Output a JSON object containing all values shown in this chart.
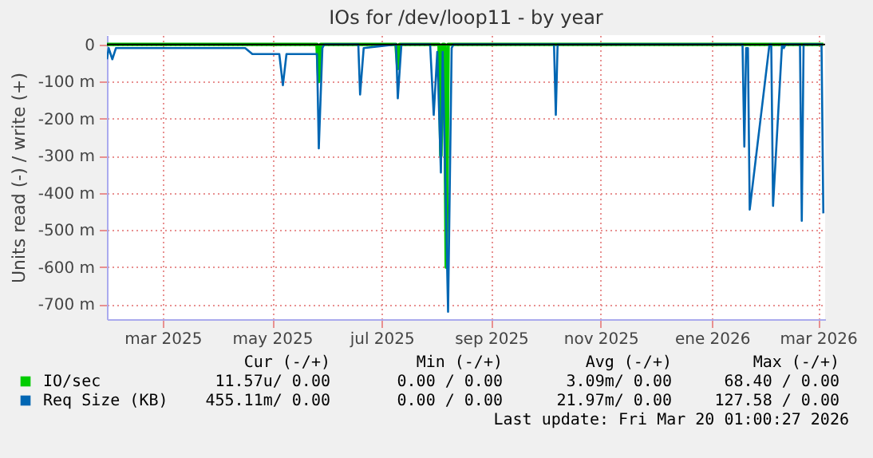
{
  "chart_data": {
    "type": "line",
    "title": "IOs for /dev/loop11 - by year",
    "ylabel": "Units read (-) / write (+)",
    "xlim": [
      "2025-02-13",
      "2026-03-20"
    ],
    "xticks": [
      {
        "value": "2025-03-16",
        "label": "mar 2025"
      },
      {
        "value": "2025-05-16",
        "label": "may 2025"
      },
      {
        "value": "2025-07-16",
        "label": "jul 2025"
      },
      {
        "value": "2025-09-15",
        "label": "sep 2025"
      },
      {
        "value": "2025-11-15",
        "label": "nov 2025"
      },
      {
        "value": "2026-01-16",
        "label": "ene 2026"
      },
      {
        "value": "2026-03-16",
        "label": "mar 2026"
      }
    ],
    "ylim": [
      -740,
      25
    ],
    "yticks": [
      0,
      {
        "value": -100,
        "label": "-100 m"
      },
      {
        "value": -200,
        "label": "-200 m"
      },
      {
        "value": -300,
        "label": "-300 m"
      },
      {
        "value": -400,
        "label": "-400 m"
      },
      {
        "value": -500,
        "label": "-500 m"
      },
      {
        "value": -600,
        "label": "-600 m"
      },
      {
        "value": -700,
        "label": "-700 m"
      }
    ],
    "grid": true,
    "legend": "bottom",
    "line_style": "solid",
    "ref_lines": [
      {
        "axis": "y",
        "value": 0,
        "color": "#000000"
      }
    ],
    "series": [
      {
        "name": "IO/sec",
        "color": "#00cc00",
        "x": [
          "2025-02-13",
          "2025-06-10",
          "2025-06-11",
          "2025-06-12",
          "2025-07-24",
          "2025-07-25",
          "2025-07-26",
          "2025-08-17",
          "2025-08-18",
          "2025-08-19",
          "2025-08-20",
          "2025-08-21",
          "2025-08-22",
          "2026-03-19"
        ],
        "values": [
          0,
          0,
          -100,
          0,
          0,
          -65,
          0,
          0,
          -300,
          0,
          0,
          -600,
          0,
          0
        ]
      },
      {
        "name": "Req Size (KB)",
        "color": "#0066b3",
        "x": [
          "2025-02-13",
          "2025-02-14",
          "2025-02-16",
          "2025-02-18",
          "2025-05-01",
          "2025-05-05",
          "2025-05-20",
          "2025-05-22",
          "2025-05-24",
          "2025-06-10",
          "2025-06-11",
          "2025-06-13",
          "2025-06-14",
          "2025-07-03",
          "2025-07-04",
          "2025-07-06",
          "2025-07-24",
          "2025-07-25",
          "2025-07-27",
          "2025-08-12",
          "2025-08-14",
          "2025-08-16",
          "2025-08-18",
          "2025-08-19",
          "2025-08-22",
          "2025-08-24",
          "2025-08-25",
          "2025-10-20",
          "2025-10-21",
          "2025-10-22",
          "2026-02-02",
          "2026-02-03",
          "2026-02-04",
          "2026-02-05",
          "2026-02-06",
          "2026-02-17",
          "2026-02-18",
          "2026-02-19",
          "2026-02-24",
          "2026-02-25",
          "2026-02-26",
          "2026-03-06",
          "2026-03-07",
          "2026-03-08",
          "2026-03-18",
          "2026-03-19"
        ],
        "values": [
          -40,
          -10,
          -40,
          -10,
          -10,
          -26,
          -26,
          -110,
          -26,
          -26,
          -280,
          -10,
          0,
          0,
          -135,
          -10,
          0,
          -145,
          0,
          0,
          -190,
          -20,
          -345,
          -20,
          -720,
          -10,
          0,
          0,
          -190,
          0,
          0,
          -275,
          -10,
          -10,
          -445,
          0,
          0,
          -435,
          0,
          -10,
          0,
          0,
          -475,
          0,
          0,
          -455
        ]
      }
    ],
    "annotations": [
      "Cur (-/+)",
      "Min (-/+)",
      "Avg (-/+)",
      "Max (-/+)",
      "11.57u/  0.00",
      "0.00 /  0.00",
      "3.09m/  0.00",
      "68.40 /  0.00",
      "455.11m/  0.00",
      "0.00 /  0.00",
      "21.97m/  0.00",
      "127.58 /  0.00",
      "Last update: Fri Mar 20 01:00:27 2026"
    ]
  }
}
